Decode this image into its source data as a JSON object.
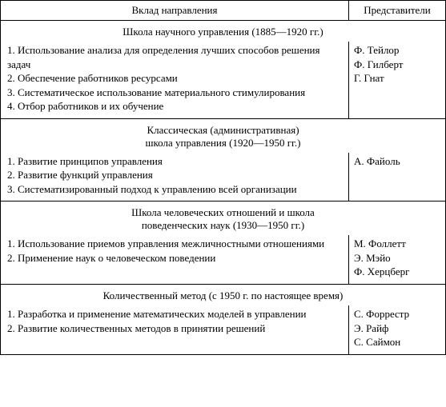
{
  "header": {
    "left": "Вклад направления",
    "right": "Представители"
  },
  "sections": [
    {
      "title_lines": [
        "Школа научного управления (1885—1920 гг.)"
      ],
      "contributions": [
        "1. Использование анализа для определения лучших способов решения задач",
        "2. Обеспечение работников ресурсами",
        "3. Систематическое использование материального стимулирования",
        "4. Отбор работников и их обучение"
      ],
      "representatives": [
        "Ф. Тейлор",
        "Ф. Гилберт",
        "Г. Гнат"
      ]
    },
    {
      "title_lines": [
        "Классическая (административная)",
        "школа управления (1920—1950 гг.)"
      ],
      "contributions": [
        "1. Развитие принципов управления",
        "2. Развитие функций управления",
        "3. Систематизированный подход к управлению всей организации"
      ],
      "representatives": [
        "А. Файоль"
      ]
    },
    {
      "title_lines": [
        "Школа человеческих отношений и школа",
        "поведенческих наук (1930—1950 гг.)"
      ],
      "contributions": [
        "1. Использование приемов управления межличностными отношениями",
        "2. Применение наук о человеческом поведении"
      ],
      "representatives": [
        "М. Фоллетт",
        "Э. Мэйо",
        "Ф. Херцберг"
      ]
    },
    {
      "title_lines": [
        "Количественный метод (с 1950 г. по настоящее время)"
      ],
      "contributions": [
        "1. Разработка и применение математических моделей в управлении",
        "2. Развитие количественных методов в принятии решений"
      ],
      "representatives": [
        "С. Форрестр",
        "Э. Райф",
        "С. Саймон"
      ]
    }
  ]
}
